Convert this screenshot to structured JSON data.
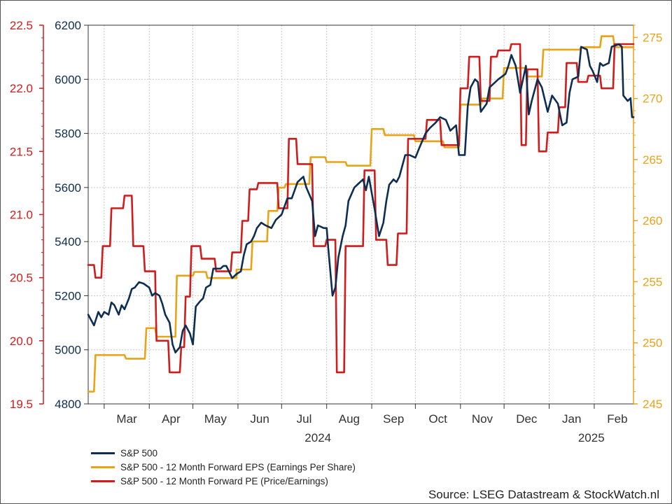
{
  "chart_data": {
    "type": "line",
    "title": "",
    "source": "Source: LSEG Datastream & StockWatch.nl",
    "x_months": [
      "Mar",
      "Apr",
      "May",
      "Jun",
      "Jul",
      "Aug",
      "Sep",
      "Oct",
      "Nov",
      "Dec",
      "Jan",
      "Feb"
    ],
    "x_years": [
      "2024",
      "2025"
    ],
    "xlim": [
      "2024-02-19",
      "2025-02-28"
    ],
    "axes": {
      "left_outer": {
        "ylim": [
          19.5,
          22.5
        ],
        "ticks": [
          "19.5",
          "20.0",
          "20.5",
          "21.0",
          "21.5",
          "22.0",
          "22.5"
        ],
        "color": "#d01c1c"
      },
      "left_inner": {
        "ylim": [
          4800,
          6200
        ],
        "ticks": [
          "4800",
          "5000",
          "5200",
          "5400",
          "5600",
          "5800",
          "6000",
          "6200"
        ],
        "color": "#0d2e52"
      },
      "right": {
        "ylim": [
          245,
          276
        ],
        "ticks": [
          "245",
          "250",
          "255",
          "260",
          "265",
          "270",
          "275"
        ],
        "color": "#e8a317"
      }
    },
    "grid": true,
    "legend_position": "bottom-left",
    "series": [
      {
        "name": "S&P 500",
        "axis": "left_inner",
        "color": "#0d2e52",
        "x": [
          "2024-02-19",
          "2024-02-21",
          "2024-02-23",
          "2024-02-26",
          "2024-02-28",
          "2024-03-01",
          "2024-03-04",
          "2024-03-06",
          "2024-03-08",
          "2024-03-11",
          "2024-03-13",
          "2024-03-15",
          "2024-03-18",
          "2024-03-20",
          "2024-03-22",
          "2024-03-25",
          "2024-03-28",
          "2024-04-01",
          "2024-04-03",
          "2024-04-05",
          "2024-04-08",
          "2024-04-10",
          "2024-04-12",
          "2024-04-15",
          "2024-04-17",
          "2024-04-19",
          "2024-04-22",
          "2024-04-24",
          "2024-04-26",
          "2024-04-29",
          "2024-05-01",
          "2024-05-03",
          "2024-05-06",
          "2024-05-08",
          "2024-05-10",
          "2024-05-13",
          "2024-05-15",
          "2024-05-17",
          "2024-05-20",
          "2024-05-22",
          "2024-05-24",
          "2024-05-28",
          "2024-05-31",
          "2024-06-03",
          "2024-06-05",
          "2024-06-07",
          "2024-06-10",
          "2024-06-12",
          "2024-06-14",
          "2024-06-17",
          "2024-06-20",
          "2024-06-24",
          "2024-06-27",
          "2024-07-01",
          "2024-07-03",
          "2024-07-05",
          "2024-07-08",
          "2024-07-10",
          "2024-07-12",
          "2024-07-16",
          "2024-07-18",
          "2024-07-22",
          "2024-07-24",
          "2024-07-26",
          "2024-07-30",
          "2024-08-01",
          "2024-08-02",
          "2024-08-05",
          "2024-08-07",
          "2024-08-09",
          "2024-08-12",
          "2024-08-14",
          "2024-08-16",
          "2024-08-20",
          "2024-08-22",
          "2024-08-26",
          "2024-08-28",
          "2024-08-30",
          "2024-09-03",
          "2024-09-06",
          "2024-09-09",
          "2024-09-11",
          "2024-09-13",
          "2024-09-16",
          "2024-09-18",
          "2024-09-20",
          "2024-09-24",
          "2024-09-27",
          "2024-10-01",
          "2024-10-04",
          "2024-10-08",
          "2024-10-11",
          "2024-10-15",
          "2024-10-18",
          "2024-10-22",
          "2024-10-25",
          "2024-10-29",
          "2024-10-31",
          "2024-11-04",
          "2024-11-06",
          "2024-11-08",
          "2024-11-11",
          "2024-11-13",
          "2024-11-15",
          "2024-11-19",
          "2024-11-21",
          "2024-11-25",
          "2024-11-27",
          "2024-12-02",
          "2024-12-04",
          "2024-12-06",
          "2024-12-09",
          "2024-12-12",
          "2024-12-16",
          "2024-12-18",
          "2024-12-20",
          "2024-12-24",
          "2024-12-27",
          "2024-12-31",
          "2025-01-03",
          "2025-01-07",
          "2025-01-10",
          "2025-01-13",
          "2025-01-15",
          "2025-01-17",
          "2025-01-21",
          "2025-01-23",
          "2025-01-27",
          "2025-01-29",
          "2025-01-31",
          "2025-02-03",
          "2025-02-05",
          "2025-02-07",
          "2025-02-11",
          "2025-02-13",
          "2025-02-18",
          "2025-02-20",
          "2025-02-21",
          "2025-02-24",
          "2025-02-26",
          "2025-02-27",
          "2025-02-28"
        ],
        "values": [
          5130,
          5110,
          5090,
          5140,
          5120,
          5140,
          5130,
          5175,
          5165,
          5130,
          5165,
          5150,
          5190,
          5225,
          5230,
          5250,
          5245,
          5230,
          5200,
          5210,
          5200,
          5170,
          5130,
          5100,
          5020,
          4990,
          5010,
          5070,
          5090,
          5060,
          5020,
          5160,
          5180,
          5190,
          5230,
          5240,
          5300,
          5300,
          5300,
          5310,
          5310,
          5265,
          5280,
          5290,
          5350,
          5390,
          5400,
          5420,
          5450,
          5470,
          5460,
          5450,
          5480,
          5500,
          5530,
          5560,
          5560,
          5590,
          5620,
          5640,
          5600,
          5550,
          5420,
          5460,
          5450,
          5450,
          5380,
          5200,
          5230,
          5340,
          5420,
          5460,
          5550,
          5600,
          5610,
          5630,
          5590,
          5640,
          5520,
          5420,
          5470,
          5550,
          5610,
          5630,
          5620,
          5640,
          5720,
          5720,
          5710,
          5750,
          5800,
          5820,
          5840,
          5860,
          5850,
          5810,
          5830,
          5720,
          5720,
          5900,
          5970,
          6000,
          5990,
          5880,
          5910,
          5970,
          5990,
          6000,
          6020,
          6050,
          6090,
          6050,
          5950,
          6050,
          5870,
          5920,
          6000,
          5970,
          5880,
          5940,
          5910,
          5830,
          5840,
          5950,
          6000,
          6010,
          6120,
          6110,
          6050,
          6030,
          5990,
          6060,
          6050,
          6060,
          6120,
          6130,
          6120,
          5940,
          5920,
          5930,
          5860,
          5860
        ]
      },
      {
        "name": "S&P 500 - 12 Month Forward EPS (Earnings Per Share)",
        "axis": "right",
        "color": "#e8a317",
        "x": [
          "2024-02-19",
          "2024-02-23",
          "2024-02-24",
          "2024-03-01",
          "2024-03-02",
          "2024-03-15",
          "2024-03-16",
          "2024-03-29",
          "2024-03-30",
          "2024-04-05",
          "2024-04-06",
          "2024-04-19",
          "2024-04-20",
          "2024-05-01",
          "2024-05-02",
          "2024-05-10",
          "2024-05-11",
          "2024-05-31",
          "2024-05-31",
          "2024-06-10",
          "2024-06-11",
          "2024-06-21",
          "2024-06-22",
          "2024-06-28",
          "2024-06-29",
          "2024-07-03",
          "2024-07-04",
          "2024-07-20",
          "2024-07-21",
          "2024-07-31",
          "2024-08-01",
          "2024-08-14",
          "2024-08-15",
          "2024-08-31",
          "2024-09-01",
          "2024-09-09",
          "2024-09-10",
          "2024-09-30",
          "2024-10-01",
          "2024-10-20",
          "2024-10-21",
          "2024-10-31",
          "2024-11-01",
          "2024-11-15",
          "2024-11-16",
          "2024-11-30",
          "2024-12-01",
          "2024-12-16",
          "2024-12-17",
          "2024-12-27",
          "2024-12-28",
          "2025-01-22",
          "2025-01-23",
          "2025-02-05",
          "2025-02-06",
          "2025-02-14",
          "2025-02-15",
          "2025-02-28"
        ],
        "values": [
          246,
          246,
          249,
          249,
          249,
          249,
          248.7,
          248.7,
          251.2,
          251.2,
          250.5,
          250.5,
          255.5,
          255.5,
          255.8,
          255.8,
          255.3,
          255.3,
          256,
          256,
          258.3,
          258.3,
          260.8,
          260.8,
          262.7,
          262.7,
          263,
          263,
          265.2,
          265.2,
          264.8,
          264.8,
          264.5,
          264.5,
          267.5,
          267.5,
          267,
          267,
          266.5,
          266.5,
          266,
          266,
          269.5,
          269.5,
          270,
          270,
          272.5,
          272.5,
          271.8,
          271.8,
          274,
          274,
          274.2,
          274.2,
          275.1,
          275.1,
          274.2,
          274.2
        ]
      },
      {
        "name": "S&P 500 - 12 Month Forward PE (Price/Earnings)",
        "axis": "left_outer",
        "color": "#d01c1c",
        "x": [
          "2024-02-19",
          "2024-02-23",
          "2024-02-24",
          "2024-02-28",
          "2024-02-29",
          "2024-03-05",
          "2024-03-06",
          "2024-03-14",
          "2024-03-15",
          "2024-03-20",
          "2024-03-21",
          "2024-03-28",
          "2024-03-29",
          "2024-04-05",
          "2024-04-06",
          "2024-04-14",
          "2024-04-15",
          "2024-04-22",
          "2024-04-23",
          "2024-04-25",
          "2024-04-26",
          "2024-04-29",
          "2024-04-30",
          "2024-05-06",
          "2024-05-07",
          "2024-05-16",
          "2024-05-17",
          "2024-05-27",
          "2024-05-28",
          "2024-06-03",
          "2024-06-04",
          "2024-06-08",
          "2024-06-09",
          "2024-06-14",
          "2024-06-15",
          "2024-06-28",
          "2024-06-29",
          "2024-07-05",
          "2024-07-06",
          "2024-07-11",
          "2024-07-12",
          "2024-07-22",
          "2024-07-23",
          "2024-07-31",
          "2024-08-01",
          "2024-08-07",
          "2024-08-08",
          "2024-08-13",
          "2024-08-14",
          "2024-08-26",
          "2024-08-27",
          "2024-09-03",
          "2024-09-04",
          "2024-09-11",
          "2024-09-12",
          "2024-09-18",
          "2024-09-19",
          "2024-09-25",
          "2024-09-26",
          "2024-10-08",
          "2024-10-09",
          "2024-10-18",
          "2024-10-19",
          "2024-10-31",
          "2024-11-01",
          "2024-11-06",
          "2024-11-07",
          "2024-11-14",
          "2024-11-15",
          "2024-11-21",
          "2024-11-22",
          "2024-11-26",
          "2024-11-27",
          "2024-12-05",
          "2024-12-06",
          "2024-12-12",
          "2024-12-13",
          "2024-12-16",
          "2024-12-17",
          "2024-12-24",
          "2024-12-25",
          "2024-12-30",
          "2024-12-31",
          "2025-01-07",
          "2025-01-08",
          "2025-01-12",
          "2025-01-13",
          "2025-01-20",
          "2025-01-21",
          "2025-01-27",
          "2025-01-28",
          "2025-02-05",
          "2025-02-06",
          "2025-02-14",
          "2025-02-15",
          "2025-02-28"
        ],
        "values": [
          20.6,
          20.6,
          20.5,
          20.5,
          20.75,
          20.75,
          21.05,
          21.05,
          21.15,
          21.15,
          20.75,
          20.75,
          20.55,
          20.55,
          20.0,
          20.0,
          19.75,
          19.75,
          19.95,
          19.95,
          20.35,
          20.35,
          20.75,
          20.75,
          20.65,
          20.65,
          20.55,
          20.55,
          20.7,
          20.7,
          20.95,
          20.95,
          21.2,
          21.2,
          21.25,
          21.25,
          21.05,
          21.05,
          21.6,
          21.6,
          21.4,
          21.4,
          20.75,
          20.75,
          20.8,
          20.8,
          19.75,
          19.75,
          20.75,
          20.75,
          21.35,
          21.35,
          20.8,
          20.8,
          20.6,
          20.6,
          20.85,
          20.85,
          21.6,
          21.6,
          21.75,
          21.75,
          21.55,
          21.55,
          22.0,
          22.0,
          22.25,
          22.25,
          21.9,
          21.9,
          22.25,
          22.25,
          22.3,
          22.3,
          22.35,
          22.35,
          21.55,
          21.55,
          22.15,
          22.15,
          21.5,
          21.5,
          21.65,
          21.65,
          21.85,
          21.85,
          22.2,
          22.2,
          22.05,
          22.05,
          22.1,
          22.1,
          22.0,
          22.0,
          22.35,
          22.35
        ]
      }
    ]
  }
}
